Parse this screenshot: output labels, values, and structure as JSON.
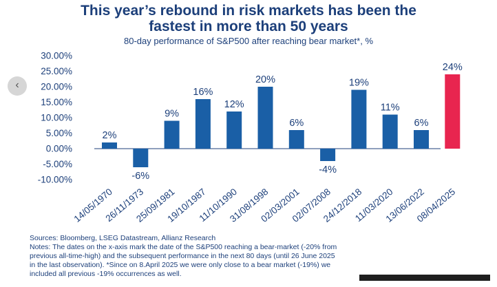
{
  "title_line1": "This year’s rebound in risk markets has been the",
  "title_line2": "fastest in more than 50 years",
  "subtitle": "80-day performance of S&P500 after reaching bear market*, %",
  "chart_data": {
    "type": "bar",
    "categories": [
      "14/05/1970",
      "26/11/1973",
      "25/09/1981",
      "19/10/1987",
      "11/10/1990",
      "31/08/1998",
      "02/03/2001",
      "02/07/2008",
      "24/12/2018",
      "11/03/2020",
      "13/06/2022",
      "08/04/2025"
    ],
    "values": [
      2,
      -6,
      9,
      16,
      12,
      20,
      6,
      -4,
      19,
      11,
      6,
      24
    ],
    "data_labels": [
      "2%",
      "-6%",
      "9%",
      "16%",
      "12%",
      "20%",
      "6%",
      "-4%",
      "19%",
      "11%",
      "6%",
      "24%"
    ],
    "ylim": [
      -10,
      30
    ],
    "y_ticks": [
      -10,
      -5,
      0,
      5,
      10,
      15,
      20,
      25,
      30
    ],
    "y_tick_labels": [
      "-10.00%",
      "-5.00%",
      "0.00%",
      "5.00%",
      "10.00%",
      "15.00%",
      "20.00%",
      "25.00%",
      "30.00%"
    ],
    "highlight_index": 11,
    "colors": {
      "bar": "#1a5fa6",
      "highlight": "#e8254f",
      "text": "#1c3f7a"
    },
    "grid": false,
    "xlabel": "",
    "ylabel": ""
  },
  "notes": {
    "line1": "Sources: Bloomberg, LSEG Datastream, Allianz Research",
    "line2": "Notes: The dates on the x-axis mark the date of the S&P500 reaching a bear-market (-20% from",
    "line3": "previous all-time-high) and the subsequent performance in the next 80 days (until 26 June 2025",
    "line4": "in the last observation). *Since on 8.April 2025 we were only close to a bear market (-19%) we",
    "line5": "included all previous -19% occurrences as well."
  },
  "nav": {
    "prev_icon": "‹"
  }
}
